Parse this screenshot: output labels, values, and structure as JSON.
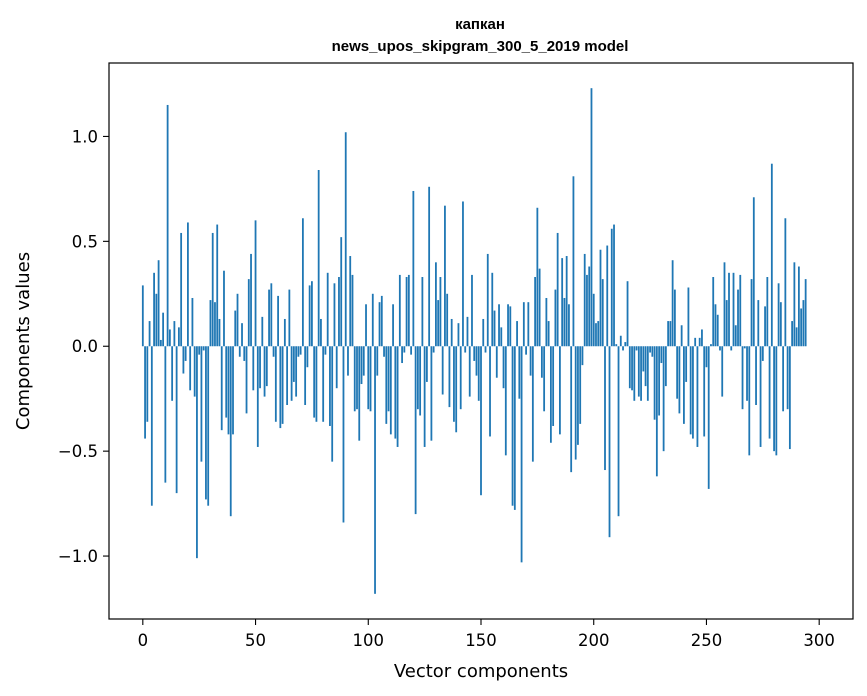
{
  "chart_data": {
    "type": "bar",
    "title": "капкан",
    "subtitle": "news_upos_skipgram_300_5_2019 model",
    "xlabel": "Vector components",
    "ylabel": "Components values",
    "xlim": [
      -15,
      315
    ],
    "ylim": [
      -1.3,
      1.35
    ],
    "x_ticks": [
      0,
      50,
      100,
      150,
      200,
      250,
      300
    ],
    "x_tick_labels": [
      "0",
      "50",
      "100",
      "150",
      "200",
      "250",
      "300"
    ],
    "y_ticks": [
      -1.0,
      -0.5,
      0.0,
      0.5,
      1.0
    ],
    "y_tick_labels": [
      "−1.0",
      "−0.5",
      "0.0",
      "0.5",
      "1.0"
    ],
    "grid": false,
    "bar_color": "#1f77b4",
    "x": "0..299",
    "values": [
      0.29,
      -0.44,
      -0.36,
      0.12,
      -0.76,
      0.35,
      0.25,
      0.41,
      0.03,
      0.16,
      -0.65,
      1.15,
      0.08,
      -0.26,
      0.12,
      -0.7,
      0.09,
      0.54,
      -0.13,
      -0.07,
      0.59,
      -0.21,
      0.23,
      -0.24,
      -1.01,
      -0.04,
      -0.55,
      -0.02,
      -0.73,
      -0.76,
      0.22,
      0.54,
      0.21,
      0.58,
      0.13,
      -0.4,
      0.36,
      -0.34,
      -0.42,
      -0.81,
      -0.42,
      0.17,
      0.25,
      -0.05,
      0.11,
      -0.07,
      -0.32,
      0.32,
      0.44,
      -0.21,
      0.6,
      -0.48,
      -0.2,
      0.14,
      -0.24,
      -0.19,
      0.27,
      0.3,
      -0.05,
      -0.36,
      0.24,
      -0.39,
      -0.37,
      0.13,
      -0.28,
      0.27,
      -0.26,
      -0.17,
      -0.24,
      -0.05,
      -0.04,
      0.61,
      -0.28,
      -0.1,
      0.29,
      0.31,
      -0.34,
      -0.36,
      0.84,
      0.13,
      -0.36,
      -0.04,
      0.35,
      -0.38,
      -0.55,
      0.3,
      -0.2,
      0.33,
      0.52,
      -0.84,
      1.02,
      -0.14,
      0.43,
      0.34,
      -0.31,
      -0.3,
      -0.45,
      -0.18,
      -0.14,
      0.2,
      -0.3,
      -0.31,
      0.25,
      -1.18,
      -0.14,
      0.21,
      0.24,
      -0.05,
      -0.37,
      -0.31,
      -0.42,
      0.2,
      -0.44,
      -0.48,
      0.34,
      -0.08,
      -0.03,
      0.33,
      0.34,
      -0.04,
      0.74,
      -0.8,
      -0.3,
      -0.33,
      0.33,
      -0.48,
      -0.17,
      0.76,
      -0.45,
      -0.03,
      0.4,
      0.22,
      0.33,
      -0.23,
      0.67,
      0.25,
      -0.29,
      0.13,
      -0.36,
      -0.41,
      0.11,
      -0.3,
      0.69,
      -0.03,
      0.14,
      -0.24,
      0.34,
      -0.07,
      -0.14,
      -0.26,
      -0.71,
      0.13,
      -0.03,
      0.44,
      -0.43,
      0.35,
      0.17,
      -0.15,
      0.2,
      0.09,
      -0.2,
      -0.52,
      0.2,
      0.19,
      -0.76,
      -0.78,
      0.12,
      -0.25,
      -1.03,
      0.21,
      -0.04,
      0.21,
      -0.14,
      -0.55,
      0.33,
      0.66,
      0.37,
      -0.15,
      -0.31,
      0.23,
      0.12,
      -0.46,
      -0.38,
      0.27,
      0.54,
      -0.42,
      0.42,
      0.23,
      0.43,
      0.2,
      -0.6,
      0.81,
      -0.54,
      -0.47,
      -0.37,
      -0.09,
      0.44,
      0.34,
      0.38,
      1.23,
      0.25,
      0.11,
      0.12,
      0.46,
      0.32,
      -0.59,
      0.48,
      -0.91,
      0.56,
      0.58,
      0.01,
      -0.81,
      0.05,
      -0.02,
      0.02,
      0.31,
      -0.2,
      -0.21,
      -0.26,
      -0.02,
      -0.24,
      -0.26,
      -0.12,
      -0.19,
      -0.26,
      -0.03,
      -0.05,
      -0.35,
      -0.62,
      -0.33,
      -0.08,
      -0.5,
      -0.19,
      0.12,
      0.12,
      0.41,
      0.27,
      -0.25,
      -0.32,
      0.1,
      -0.37,
      -0.17,
      0.28,
      -0.42,
      -0.44,
      0.04,
      -0.48,
      0.04,
      0.08,
      -0.43,
      -0.1,
      -0.68,
      0.01,
      0.33,
      0.2,
      0.15,
      -0.02,
      -0.24,
      0.4,
      0.22,
      0.35,
      -0.02,
      0.35,
      0.1,
      0.27,
      0.34,
      -0.3,
      -0.01,
      -0.26,
      -0.52,
      0.32,
      0.71,
      -0.28,
      0.22,
      -0.48,
      -0.07,
      0.19,
      0.33,
      -0.44,
      0.87,
      -0.5,
      -0.52,
      0.3,
      0.21,
      -0.31,
      0.61,
      -0.3,
      -0.49,
      0.12,
      0.4,
      0.09,
      0.38,
      0.18,
      0.22,
      0.32
    ]
  }
}
